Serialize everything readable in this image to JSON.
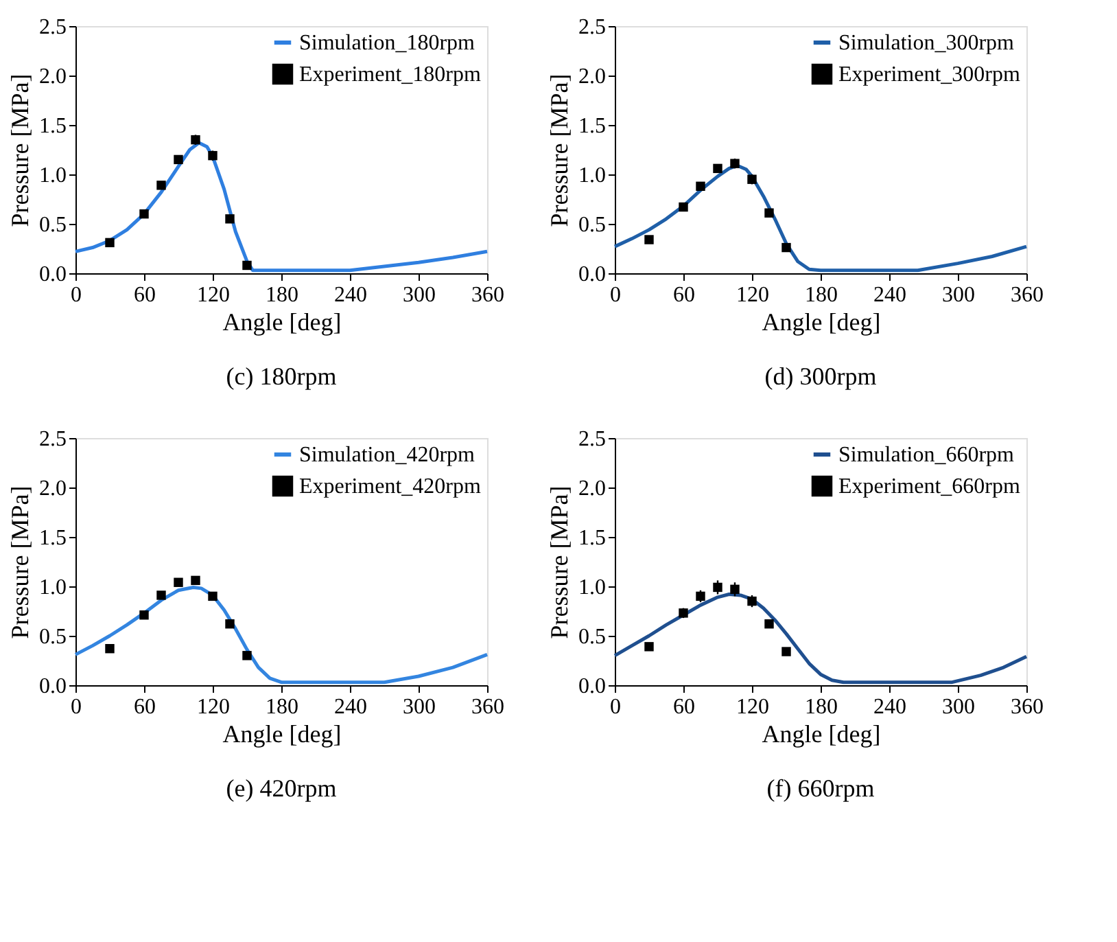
{
  "chart_data": [
    {
      "type": "line",
      "title": "(c) 180rpm",
      "xlabel": "Angle [deg]",
      "ylabel": "Pressure [MPa]",
      "xlim": [
        0,
        360
      ],
      "xticks": [
        0,
        60,
        120,
        180,
        240,
        300,
        360
      ],
      "ylim": [
        0,
        2.5
      ],
      "yticks": [
        {
          "value": 0,
          "label": "0.0"
        },
        {
          "value": 0.5,
          "label": "0.5"
        },
        {
          "value": 1,
          "label": "1.0"
        },
        {
          "value": 1.5,
          "label": "1.5"
        },
        {
          "value": 2,
          "label": "2.0"
        },
        {
          "value": 2.5,
          "label": "2.5"
        }
      ],
      "grid": false,
      "legend": "top right",
      "series": [
        {
          "name": "Simulation_180rpm",
          "type": "line",
          "color": "#2f7fe0",
          "line_style": "solid",
          "marker": "none",
          "x": [
            0,
            15,
            30,
            45,
            60,
            75,
            90,
            100,
            108,
            115,
            120,
            130,
            140,
            150,
            155,
            180,
            240,
            270,
            300,
            330,
            360
          ],
          "values": [
            0.22,
            0.26,
            0.33,
            0.44,
            0.6,
            0.82,
            1.08,
            1.25,
            1.32,
            1.28,
            1.18,
            0.85,
            0.42,
            0.12,
            0.03,
            0.03,
            0.03,
            0.07,
            0.11,
            0.16,
            0.22
          ]
        },
        {
          "name": "Experiment_180rpm",
          "type": "scatter",
          "color": "#000000",
          "marker": "square",
          "x": [
            30,
            60,
            75,
            90,
            105,
            120,
            135,
            150
          ],
          "values": [
            0.31,
            0.6,
            0.89,
            1.15,
            1.35,
            1.19,
            0.55,
            0.08
          ],
          "errors": [
            0.03,
            0.03,
            0.04,
            0.04,
            0.05,
            0.05,
            0.03,
            0.03
          ]
        }
      ]
    },
    {
      "type": "line",
      "title": "(d) 300rpm",
      "xlabel": "Angle [deg]",
      "ylabel": "Pressure [MPa]",
      "xlim": [
        0,
        360
      ],
      "xticks": [
        0,
        60,
        120,
        180,
        240,
        300,
        360
      ],
      "ylim": [
        0,
        2.5
      ],
      "yticks": [
        {
          "value": 0,
          "label": "0.0"
        },
        {
          "value": 0.5,
          "label": "0.5"
        },
        {
          "value": 1,
          "label": "1.0"
        },
        {
          "value": 1.5,
          "label": "1.5"
        },
        {
          "value": 2,
          "label": "2.0"
        },
        {
          "value": 2.5,
          "label": "2.5"
        }
      ],
      "grid": false,
      "legend": "top right",
      "series": [
        {
          "name": "Simulation_300rpm",
          "type": "line",
          "color": "#1f5fa8",
          "line_style": "solid",
          "marker": "none",
          "x": [
            0,
            15,
            30,
            45,
            60,
            75,
            90,
            100,
            107,
            115,
            120,
            130,
            140,
            150,
            160,
            170,
            180,
            240,
            265,
            300,
            330,
            360
          ],
          "values": [
            0.27,
            0.35,
            0.44,
            0.55,
            0.68,
            0.84,
            0.98,
            1.06,
            1.09,
            1.05,
            0.98,
            0.78,
            0.55,
            0.3,
            0.12,
            0.04,
            0.03,
            0.03,
            0.03,
            0.1,
            0.17,
            0.27
          ]
        },
        {
          "name": "Experiment_300rpm",
          "type": "scatter",
          "color": "#000000",
          "marker": "square",
          "x": [
            30,
            60,
            75,
            90,
            105,
            120,
            135,
            150
          ],
          "values": [
            0.34,
            0.67,
            0.88,
            1.06,
            1.11,
            0.95,
            0.61,
            0.26
          ],
          "errors": [
            0.03,
            0.03,
            0.04,
            0.03,
            0.05,
            0.05,
            0.03,
            0.03
          ]
        }
      ]
    },
    {
      "type": "line",
      "title": "(e) 420rpm",
      "xlabel": "Angle [deg]",
      "ylabel": "Pressure [MPa]",
      "xlim": [
        0,
        360
      ],
      "xticks": [
        0,
        60,
        120,
        180,
        240,
        300,
        360
      ],
      "ylim": [
        0,
        2.5
      ],
      "yticks": [
        {
          "value": 0,
          "label": "0.0"
        },
        {
          "value": 0.5,
          "label": "0.5"
        },
        {
          "value": 1,
          "label": "1.0"
        },
        {
          "value": 1.5,
          "label": "1.5"
        },
        {
          "value": 2,
          "label": "2.0"
        },
        {
          "value": 2.5,
          "label": "2.5"
        }
      ],
      "grid": false,
      "legend": "top right",
      "series": [
        {
          "name": "Simulation_420rpm",
          "type": "line",
          "color": "#3385e0",
          "line_style": "solid",
          "marker": "none",
          "x": [
            0,
            15,
            30,
            45,
            60,
            75,
            90,
            103,
            110,
            120,
            130,
            140,
            150,
            160,
            170,
            180,
            240,
            270,
            300,
            330,
            360
          ],
          "values": [
            0.31,
            0.4,
            0.5,
            0.61,
            0.73,
            0.86,
            0.96,
            0.99,
            0.98,
            0.91,
            0.76,
            0.57,
            0.36,
            0.18,
            0.07,
            0.03,
            0.03,
            0.03,
            0.09,
            0.18,
            0.31
          ]
        },
        {
          "name": "Experiment_420rpm",
          "type": "scatter",
          "color": "#000000",
          "marker": "square",
          "x": [
            30,
            60,
            75,
            90,
            105,
            120,
            135,
            150
          ],
          "values": [
            0.37,
            0.71,
            0.91,
            1.04,
            1.06,
            0.9,
            0.62,
            0.3
          ],
          "errors": [
            0.02,
            0.02,
            0.03,
            0.02,
            0.03,
            0.03,
            0.02,
            0.02
          ]
        }
      ]
    },
    {
      "type": "line",
      "title": "(f) 660rpm",
      "xlabel": "Angle [deg]",
      "ylabel": "Pressure [MPa]",
      "xlim": [
        0,
        360
      ],
      "xticks": [
        0,
        60,
        120,
        180,
        240,
        300,
        360
      ],
      "ylim": [
        0,
        2.5
      ],
      "yticks": [
        {
          "value": 0,
          "label": "0.0"
        },
        {
          "value": 0.5,
          "label": "0.5"
        },
        {
          "value": 1,
          "label": "1.0"
        },
        {
          "value": 1.5,
          "label": "1.5"
        },
        {
          "value": 2,
          "label": "2.0"
        },
        {
          "value": 2.5,
          "label": "2.5"
        }
      ],
      "grid": false,
      "legend": "top right",
      "series": [
        {
          "name": "Simulation_660rpm",
          "type": "line",
          "color": "#1f4f8f",
          "line_style": "solid",
          "marker": "none",
          "x": [
            0,
            15,
            30,
            45,
            60,
            75,
            90,
            100,
            110,
            120,
            130,
            140,
            150,
            160,
            170,
            180,
            190,
            200,
            240,
            295,
            320,
            340,
            360
          ],
          "values": [
            0.3,
            0.4,
            0.5,
            0.61,
            0.71,
            0.81,
            0.89,
            0.92,
            0.91,
            0.87,
            0.78,
            0.66,
            0.52,
            0.37,
            0.22,
            0.11,
            0.05,
            0.03,
            0.03,
            0.03,
            0.1,
            0.18,
            0.29
          ]
        },
        {
          "name": "Experiment_660rpm",
          "type": "scatter",
          "color": "#000000",
          "marker": "square",
          "x": [
            30,
            60,
            75,
            90,
            105,
            120,
            135,
            150
          ],
          "values": [
            0.39,
            0.73,
            0.9,
            0.99,
            0.97,
            0.85,
            0.62,
            0.34
          ],
          "errors": [
            0.04,
            0.05,
            0.06,
            0.07,
            0.07,
            0.06,
            0.04,
            0.03
          ]
        }
      ]
    }
  ]
}
